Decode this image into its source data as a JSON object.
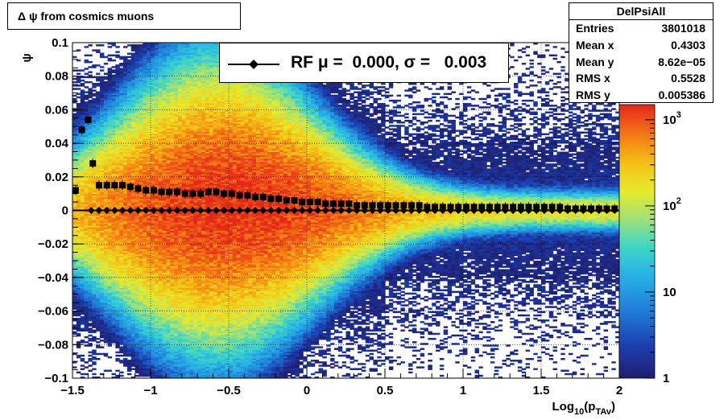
{
  "title": "Δ ψ from cosmics muons",
  "stats": {
    "name": "DelPsiAll",
    "rows": [
      {
        "label": "Entries",
        "value": "3801018"
      },
      {
        "label": "Mean x",
        "value": "0.4303"
      },
      {
        "label": "Mean y",
        "value": "8.62e−05"
      },
      {
        "label": "RMS x",
        "value": "0.5528"
      },
      {
        "label": "RMS y",
        "value": "0.005386"
      }
    ]
  },
  "legend": {
    "text": "RF μ =  0.000, σ =   0.003"
  },
  "colors": {
    "marker": "#000000",
    "fit_line": "#000000",
    "frame": "#000000"
  },
  "chart_data": {
    "type": "heatmap",
    "title": "Δ ψ from cosmics muons",
    "xlabel": "Log10(pTAv)",
    "xlabel_base": "Log",
    "xlabel_sub1": "10",
    "xlabel_mid": "(p",
    "xlabel_sub2": "TAv",
    "xlabel_end": ")",
    "ylabel": "ψ",
    "xlim": [
      -1.5,
      2.0
    ],
    "ylim": [
      -0.1,
      0.1
    ],
    "x_ticks": [
      "−1.5",
      "−1",
      "−0.5",
      "0",
      "0.5",
      "1",
      "1.5",
      "2"
    ],
    "x_tick_values": [
      -1.5,
      -1,
      -0.5,
      0,
      0.5,
      1,
      1.5,
      2
    ],
    "y_ticks": [
      "0.1",
      "0.08",
      "0.06",
      "0.04",
      "0.02",
      "0",
      "−0.02",
      "−0.04",
      "−0.06",
      "−0.08",
      "−0.1"
    ],
    "y_tick_values": [
      0.1,
      0.08,
      0.06,
      0.04,
      0.02,
      0,
      -0.02,
      -0.04,
      -0.06,
      -0.08,
      -0.1
    ],
    "z_scale": "log",
    "z_range": [
      1,
      1500
    ],
    "colorbar_ticks": [
      {
        "value": 1,
        "base": "1",
        "exp": ""
      },
      {
        "value": 10,
        "base": "10",
        "exp": ""
      },
      {
        "value": 100,
        "base": "10",
        "exp": "2"
      },
      {
        "value": 1000,
        "base": "10",
        "exp": "3"
      }
    ],
    "grid": true,
    "series": [
      {
        "marker": "square",
        "points": [
          [
            -1.48,
            0.012
          ],
          [
            -1.44,
            0.048
          ],
          [
            -1.4,
            0.054
          ],
          [
            -1.37,
            0.028
          ],
          [
            -1.33,
            0.015
          ],
          [
            -1.28,
            0.015
          ],
          [
            -1.23,
            0.015
          ],
          [
            -1.18,
            0.015
          ],
          [
            -1.13,
            0.014
          ],
          [
            -1.08,
            0.013
          ],
          [
            -1.03,
            0.012
          ],
          [
            -0.98,
            0.012
          ],
          [
            -0.93,
            0.011
          ],
          [
            -0.88,
            0.011
          ],
          [
            -0.83,
            0.011
          ],
          [
            -0.78,
            0.01
          ],
          [
            -0.73,
            0.01
          ],
          [
            -0.68,
            0.01
          ],
          [
            -0.63,
            0.011
          ],
          [
            -0.58,
            0.011
          ],
          [
            -0.53,
            0.01
          ],
          [
            -0.48,
            0.01
          ],
          [
            -0.43,
            0.009
          ],
          [
            -0.38,
            0.009
          ],
          [
            -0.33,
            0.008
          ],
          [
            -0.28,
            0.008
          ],
          [
            -0.23,
            0.007
          ],
          [
            -0.18,
            0.007
          ],
          [
            -0.13,
            0.006
          ],
          [
            -0.08,
            0.006
          ],
          [
            -0.03,
            0.005
          ],
          [
            0.02,
            0.005
          ],
          [
            0.07,
            0.005
          ],
          [
            0.12,
            0.004
          ],
          [
            0.17,
            0.004
          ],
          [
            0.22,
            0.004
          ],
          [
            0.27,
            0.004
          ],
          [
            0.32,
            0.003
          ],
          [
            0.37,
            0.003
          ],
          [
            0.42,
            0.003
          ],
          [
            0.47,
            0.003
          ],
          [
            0.52,
            0.003
          ],
          [
            0.57,
            0.003
          ],
          [
            0.62,
            0.003
          ],
          [
            0.67,
            0.003
          ],
          [
            0.72,
            0.003
          ],
          [
            0.77,
            0.002
          ],
          [
            0.82,
            0.002
          ],
          [
            0.87,
            0.002
          ],
          [
            0.92,
            0.002
          ],
          [
            0.97,
            0.002
          ],
          [
            1.02,
            0.002
          ],
          [
            1.07,
            0.002
          ],
          [
            1.12,
            0.002
          ],
          [
            1.17,
            0.002
          ],
          [
            1.22,
            0.002
          ],
          [
            1.27,
            0.002
          ],
          [
            1.32,
            0.002
          ],
          [
            1.37,
            0.002
          ],
          [
            1.42,
            0.002
          ],
          [
            1.47,
            0.002
          ],
          [
            1.52,
            0.002
          ],
          [
            1.57,
            0.002
          ],
          [
            1.62,
            0.002
          ],
          [
            1.67,
            0.001
          ],
          [
            1.72,
            0.001
          ],
          [
            1.77,
            0.001
          ],
          [
            1.82,
            0.001
          ],
          [
            1.87,
            0.001
          ],
          [
            1.92,
            0.001
          ],
          [
            1.97,
            0.001
          ]
        ]
      },
      {
        "name": "RF",
        "marker": "diamond",
        "points": [
          [
            -1.38,
            0.0
          ],
          [
            -1.33,
            0.0
          ],
          [
            -1.28,
            0.0
          ],
          [
            -1.23,
            0.0
          ],
          [
            -1.18,
            0.0
          ],
          [
            -1.13,
            0.0
          ],
          [
            -1.08,
            0.0
          ],
          [
            -1.03,
            0.0
          ],
          [
            -0.98,
            0.0
          ],
          [
            -0.93,
            0.0
          ],
          [
            -0.88,
            0.0
          ],
          [
            -0.83,
            0.0
          ],
          [
            -0.78,
            0.0
          ],
          [
            -0.73,
            0.0
          ],
          [
            -0.68,
            0.0
          ],
          [
            -0.63,
            0.0
          ],
          [
            -0.58,
            0.0
          ],
          [
            -0.53,
            0.0
          ],
          [
            -0.48,
            0.0
          ],
          [
            -0.43,
            0.0
          ],
          [
            -0.38,
            0.0
          ],
          [
            -0.33,
            0.0
          ],
          [
            -0.28,
            0.0
          ],
          [
            -0.23,
            0.0
          ],
          [
            -0.18,
            0.0
          ],
          [
            -0.13,
            0.0
          ],
          [
            -0.08,
            0.0
          ],
          [
            -0.03,
            0.0
          ],
          [
            0.02,
            0.0
          ],
          [
            0.07,
            0.0
          ],
          [
            0.12,
            0.0
          ],
          [
            0.17,
            0.0
          ],
          [
            0.22,
            0.0
          ],
          [
            0.27,
            0.0
          ],
          [
            0.32,
            0.0
          ],
          [
            0.37,
            0.0
          ],
          [
            0.42,
            0.0
          ],
          [
            0.47,
            0.0
          ],
          [
            0.52,
            0.0
          ],
          [
            0.57,
            0.0
          ],
          [
            0.62,
            0.0
          ],
          [
            0.67,
            0.0
          ],
          [
            0.72,
            0.0
          ],
          [
            0.77,
            0.0
          ],
          [
            0.82,
            0.0
          ],
          [
            0.87,
            0.0
          ],
          [
            0.92,
            0.0
          ],
          [
            0.97,
            0.0
          ],
          [
            1.02,
            0.0
          ],
          [
            1.07,
            0.0
          ],
          [
            1.12,
            0.0
          ],
          [
            1.17,
            0.0
          ],
          [
            1.22,
            0.0
          ],
          [
            1.27,
            0.0
          ],
          [
            1.32,
            0.0
          ],
          [
            1.37,
            0.0
          ],
          [
            1.42,
            0.0
          ],
          [
            1.47,
            0.0
          ],
          [
            1.52,
            0.0
          ],
          [
            1.57,
            0.0
          ],
          [
            1.62,
            0.0
          ],
          [
            1.67,
            0.0
          ],
          [
            1.72,
            0.0
          ],
          [
            1.77,
            0.0
          ],
          [
            1.82,
            0.0
          ],
          [
            1.87,
            0.0
          ],
          [
            1.92,
            0.0
          ],
          [
            1.97,
            0.0
          ]
        ]
      }
    ],
    "fit_line": {
      "y": 0.0
    }
  }
}
